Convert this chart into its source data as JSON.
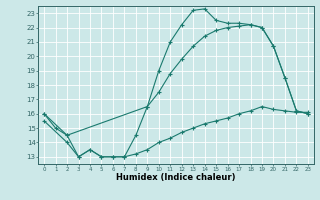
{
  "xlabel": "Humidex (Indice chaleur)",
  "background_color": "#cce8e8",
  "grid_color": "#ffffff",
  "line_color": "#1a7a6e",
  "xlim": [
    -0.5,
    23.5
  ],
  "ylim": [
    12.5,
    23.5
  ],
  "xticks": [
    0,
    1,
    2,
    3,
    4,
    5,
    6,
    7,
    8,
    9,
    10,
    11,
    12,
    13,
    14,
    15,
    16,
    17,
    18,
    19,
    20,
    21,
    22,
    23
  ],
  "yticks": [
    13,
    14,
    15,
    16,
    17,
    18,
    19,
    20,
    21,
    22,
    23
  ],
  "line1_x": [
    0,
    1,
    2,
    3,
    4,
    5,
    6,
    7,
    8,
    9,
    10,
    11,
    12,
    13,
    14,
    15,
    16,
    17,
    18,
    19,
    20,
    21,
    22,
    23
  ],
  "line1_y": [
    16,
    15,
    14.5,
    13,
    13.5,
    13,
    13,
    13,
    14.5,
    16.5,
    19,
    21,
    22.2,
    23.2,
    23.3,
    22.5,
    22.3,
    22.3,
    22.2,
    22,
    20.7,
    18.5,
    16.2,
    16
  ],
  "line2_x": [
    0,
    2,
    9,
    10,
    11,
    12,
    13,
    14,
    15,
    16,
    17,
    18,
    19,
    20,
    21,
    22,
    23
  ],
  "line2_y": [
    16,
    14.5,
    16.5,
    17.5,
    18.8,
    19.8,
    20.7,
    21.4,
    21.8,
    22,
    22.1,
    22.2,
    22,
    20.7,
    18.5,
    16.2,
    16
  ],
  "line3_x": [
    0,
    2,
    3,
    4,
    5,
    6,
    7,
    8,
    9,
    10,
    11,
    12,
    13,
    14,
    15,
    16,
    17,
    18,
    19,
    20,
    21,
    22,
    23
  ],
  "line3_y": [
    15.5,
    14,
    13,
    13.5,
    13,
    13,
    13,
    13.2,
    13.5,
    14,
    14.3,
    14.7,
    15,
    15.3,
    15.5,
    15.7,
    16,
    16.2,
    16.5,
    16.3,
    16.2,
    16.1,
    16.1
  ]
}
